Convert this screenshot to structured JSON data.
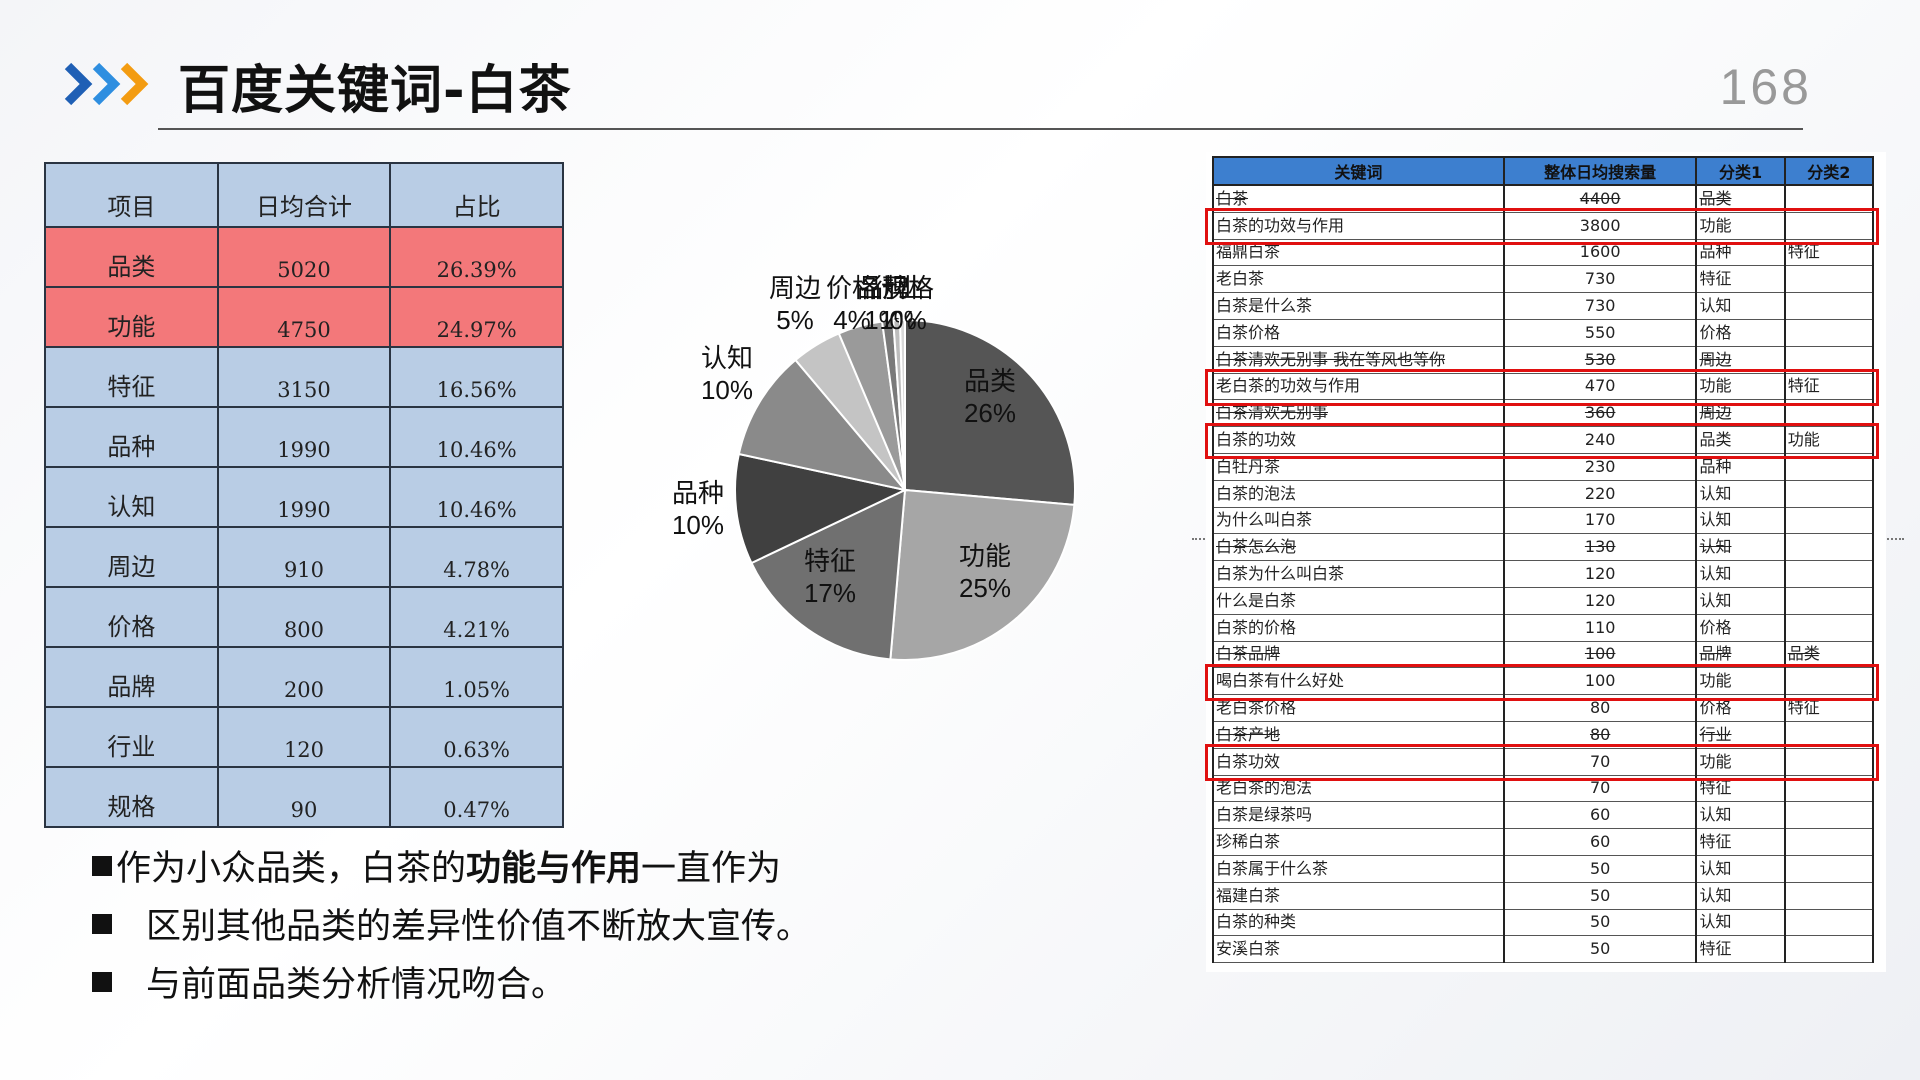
{
  "header": {
    "title": "百度关键词-白茶",
    "page_number": "168",
    "arrow_colors": [
      "#1f5fb5",
      "#2e8ee0",
      "#f39c12"
    ]
  },
  "summary_table": {
    "headers": [
      "项目",
      "日均合计",
      "占比"
    ],
    "rows": [
      {
        "name": "品类",
        "value": "5020",
        "pct": "26.39%",
        "highlight": true
      },
      {
        "name": "功能",
        "value": "4750",
        "pct": "24.97%",
        "highlight": true
      },
      {
        "name": "特征",
        "value": "3150",
        "pct": "16.56%",
        "highlight": false
      },
      {
        "name": "品种",
        "value": "1990",
        "pct": "10.46%",
        "highlight": false
      },
      {
        "name": "认知",
        "value": "1990",
        "pct": "10.46%",
        "highlight": false
      },
      {
        "name": "周边",
        "value": "910",
        "pct": "4.78%",
        "highlight": false
      },
      {
        "name": "价格",
        "value": "800",
        "pct": "4.21%",
        "highlight": false
      },
      {
        "name": "品牌",
        "value": "200",
        "pct": "1.05%",
        "highlight": false
      },
      {
        "name": "行业",
        "value": "120",
        "pct": "0.63%",
        "highlight": false
      },
      {
        "name": "规格",
        "value": "90",
        "pct": "0.47%",
        "highlight": false
      }
    ],
    "highlight_color": "#f3787a",
    "base_color": "#b9cde5"
  },
  "chart_data": {
    "type": "pie",
    "slices": [
      {
        "label": "品类",
        "value": 26.39,
        "display": "26%",
        "color": "#555555"
      },
      {
        "label": "功能",
        "value": 24.97,
        "display": "25%",
        "color": "#a6a6a6"
      },
      {
        "label": "特征",
        "value": 16.56,
        "display": "17%",
        "color": "#707070"
      },
      {
        "label": "品种",
        "value": 10.46,
        "display": "10%",
        "color": "#404040"
      },
      {
        "label": "认知",
        "value": 10.46,
        "display": "10%",
        "color": "#8a8a8a"
      },
      {
        "label": "周边",
        "value": 4.78,
        "display": "5%",
        "color": "#c4c4c4"
      },
      {
        "label": "价格",
        "value": 4.21,
        "display": "4%",
        "color": "#9a9a9a"
      },
      {
        "label": "品牌",
        "value": 1.05,
        "display": "1%",
        "color": "#7a7a7a"
      },
      {
        "label": "行业",
        "value": 0.63,
        "display": "1%",
        "color": "#bdbdbd"
      },
      {
        "label": "规格",
        "value": 0.47,
        "display": "0%",
        "color": "#d8d8d8"
      }
    ]
  },
  "bullets": {
    "line1_pre": "作为小众品类，白茶的",
    "line1_bold": "功能与作用",
    "line1_post": "一直作为",
    "line2": "区别其他品类的差异性价值不断放大宣传。",
    "line3": "与前面品类分析情况吻合。"
  },
  "keyword_table": {
    "headers": [
      "关键词",
      "整体日均搜索量",
      "分类1",
      "分类2"
    ],
    "rows": [
      {
        "kw": "白茶",
        "vol": "4400",
        "c1": "品类",
        "c2": "",
        "boxed": false,
        "strike": true
      },
      {
        "kw": "白茶的功效与作用",
        "vol": "3800",
        "c1": "功能",
        "c2": "",
        "boxed": true,
        "strike": false
      },
      {
        "kw": "福鼎白茶",
        "vol": "1600",
        "c1": "品种",
        "c2": "特征",
        "boxed": false,
        "strike": false
      },
      {
        "kw": "老白茶",
        "vol": "730",
        "c1": "特征",
        "c2": "",
        "boxed": false,
        "strike": false
      },
      {
        "kw": "白茶是什么茶",
        "vol": "730",
        "c1": "认知",
        "c2": "",
        "boxed": false,
        "strike": false
      },
      {
        "kw": "白茶价格",
        "vol": "550",
        "c1": "价格",
        "c2": "",
        "boxed": false,
        "strike": false
      },
      {
        "kw": "白茶清欢无别事 我在等风也等你",
        "vol": "530",
        "c1": "周边",
        "c2": "",
        "boxed": false,
        "strike": true
      },
      {
        "kw": "老白茶的功效与作用",
        "vol": "470",
        "c1": "功能",
        "c2": "特征",
        "boxed": true,
        "strike": false
      },
      {
        "kw": "白茶清欢无别事",
        "vol": "360",
        "c1": "周边",
        "c2": "",
        "boxed": false,
        "strike": true
      },
      {
        "kw": "白茶的功效",
        "vol": "240",
        "c1": "品类",
        "c2": "功能",
        "boxed": true,
        "strike": false
      },
      {
        "kw": "白牡丹茶",
        "vol": "230",
        "c1": "品种",
        "c2": "",
        "boxed": false,
        "strike": false
      },
      {
        "kw": "白茶的泡法",
        "vol": "220",
        "c1": "认知",
        "c2": "",
        "boxed": false,
        "strike": false
      },
      {
        "kw": "为什么叫白茶",
        "vol": "170",
        "c1": "认知",
        "c2": "",
        "boxed": false,
        "strike": false
      },
      {
        "kw": "白茶怎么泡",
        "vol": "130",
        "c1": "认知",
        "c2": "",
        "boxed": false,
        "strike": true
      },
      {
        "kw": "白茶为什么叫白茶",
        "vol": "120",
        "c1": "认知",
        "c2": "",
        "boxed": false,
        "strike": false
      },
      {
        "kw": "什么是白茶",
        "vol": "120",
        "c1": "认知",
        "c2": "",
        "boxed": false,
        "strike": false
      },
      {
        "kw": "白茶的价格",
        "vol": "110",
        "c1": "价格",
        "c2": "",
        "boxed": false,
        "strike": false
      },
      {
        "kw": "白茶品牌",
        "vol": "100",
        "c1": "品牌",
        "c2": "品类",
        "boxed": false,
        "strike": true
      },
      {
        "kw": "喝白茶有什么好处",
        "vol": "100",
        "c1": "功能",
        "c2": "",
        "boxed": true,
        "strike": false
      },
      {
        "kw": "老白茶价格",
        "vol": "80",
        "c1": "价格",
        "c2": "特征",
        "boxed": false,
        "strike": false
      },
      {
        "kw": "白茶产地",
        "vol": "80",
        "c1": "行业",
        "c2": "",
        "boxed": false,
        "strike": true
      },
      {
        "kw": "白茶功效",
        "vol": "70",
        "c1": "功能",
        "c2": "",
        "boxed": true,
        "strike": false
      },
      {
        "kw": "老白茶的泡法",
        "vol": "70",
        "c1": "特征",
        "c2": "",
        "boxed": false,
        "strike": false
      },
      {
        "kw": "白茶是绿茶吗",
        "vol": "60",
        "c1": "认知",
        "c2": "",
        "boxed": false,
        "strike": false
      },
      {
        "kw": "珍稀白茶",
        "vol": "60",
        "c1": "特征",
        "c2": "",
        "boxed": false,
        "strike": false
      },
      {
        "kw": "白茶属于什么茶",
        "vol": "50",
        "c1": "认知",
        "c2": "",
        "boxed": false,
        "strike": false
      },
      {
        "kw": "福建白茶",
        "vol": "50",
        "c1": "认知",
        "c2": "",
        "boxed": false,
        "strike": false
      },
      {
        "kw": "白茶的种类",
        "vol": "50",
        "c1": "认知",
        "c2": "",
        "boxed": false,
        "strike": false
      },
      {
        "kw": "安溪白茶",
        "vol": "50",
        "c1": "特征",
        "c2": "",
        "boxed": false,
        "strike": false
      }
    ]
  }
}
